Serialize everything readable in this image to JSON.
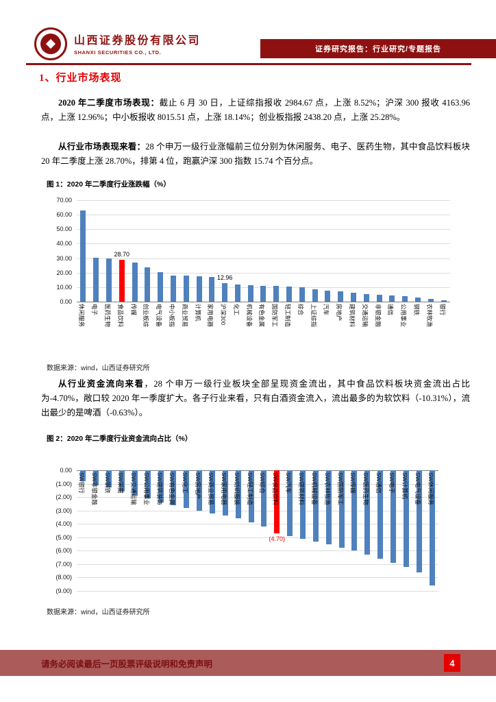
{
  "header": {
    "company_cn": "山西证券股份有限公司",
    "company_en": "SHANXI SECURITIES CO., LTD.",
    "banner": "证券研究报告：行业研究/专题报告"
  },
  "section_title": "1、行业市场表现",
  "paragraphs": {
    "p1_lead": "2020 年二季度市场表现：",
    "p1_rest": "截止 6 月 30 日，上证综指报收 2984.67 点，上涨 8.52%；沪深 300 报收 4163.96 点，上涨 12.96%；中小板报收 8015.51 点，上涨 18.14%；创业板指报 2438.20 点，上涨 25.28%。",
    "p2_lead": "从行业市场表现来看：",
    "p2_rest": "28 个申万一级行业涨幅前三位分别为休闲服务、电子、医药生物，其中食品饮料板块 20 年二季度上涨 28.70%，排第 4 位，跑赢沪深 300 指数 15.74 个百分点。",
    "p3_lead": "从行业资金流向来看",
    "p3_rest": "，28 个申万一级行业板块全部呈现资金流出，其中食品饮料板块资金流出占比为-4.70%，敞口较 2020 年一季度扩大。各子行业来看，只有白酒资金流入，流出最多的为软饮料（-10.31%），流出最少的是啤酒（-0.63%）。"
  },
  "figures": {
    "fig1_title": "图 1：2020 年二季度行业涨跌幅（%）",
    "fig1_source": "数据来源：wind，山西证券研究所",
    "fig2_title": "图 2：2020 年二季度行业资金流向占比（%）",
    "fig2_source": "数据来源：wind，山西证券研究所"
  },
  "footer": {
    "disclaimer": "请务必阅读最后一页股票评级说明和免责声明",
    "page_number": "4"
  },
  "colors": {
    "brand_red": "#8E1111",
    "accent_red": "#E60000",
    "bar_blue": "#4F81BD",
    "bar_red": "#FF0000",
    "footer_bg": "#AC5B5B",
    "footer_text": "#7B1013"
  },
  "chart_data": [
    {
      "type": "bar",
      "title": "2020 年二季度行业涨跌幅（%）",
      "ylim": [
        0,
        70
      ],
      "axis_max": 70,
      "yticks": [
        "70.00",
        "60.00",
        "50.00",
        "40.00",
        "30.00",
        "20.00",
        "10.00",
        "0.00"
      ],
      "categories": [
        "休闲服务",
        "电子",
        "医药生物",
        "食品饮料",
        "传媒",
        "创业板综",
        "电气设备",
        "中小板指",
        "商业贸易",
        "计算机",
        "家用电器",
        "沪深300",
        "化工",
        "机械设备",
        "有色金属",
        "国防军工",
        "轻工制造",
        "综合",
        "上证综指",
        "汽车",
        "房地产",
        "建筑材料",
        "交通运输",
        "非银金融",
        "通信",
        "公用事业",
        "钢铁",
        "农林牧渔",
        "银行"
      ],
      "values": [
        63.0,
        30.5,
        29.8,
        28.7,
        27.0,
        23.5,
        20.5,
        18.1,
        17.8,
        17.5,
        17.0,
        12.96,
        12.0,
        11.5,
        11.0,
        10.8,
        10.5,
        10.0,
        8.52,
        7.8,
        7.2,
        6.3,
        5.2,
        4.6,
        4.2,
        3.6,
        3.0,
        1.8,
        0.8
      ],
      "highlight_index": 3,
      "bar_color": "#4F81BD",
      "highlight_color": "#FF0000",
      "point_labels": {
        "3": "28.70",
        "11": "12.96"
      },
      "point_label_colors": {
        "3": "#000000",
        "11": "#000000"
      },
      "grid": true,
      "legend": "none"
    },
    {
      "type": "bar",
      "title": "2020 年二季度行业资金流向占比（%）",
      "ylim": [
        -9,
        0
      ],
      "axis_max": 9,
      "yticks": [
        "0.00",
        "(1.00)",
        "(2.00)",
        "(3.00)",
        "(4.00)",
        "(5.00)",
        "(6.00)",
        "(7.00)",
        "(8.00)",
        "(9.00)"
      ],
      "categories": [
        "SW银行",
        "SW非银金融",
        "SW钢铁",
        "SW采掘",
        "SW交通运输",
        "SW公用事业",
        "SW建筑装饰",
        "SW有色金属",
        "SW化工",
        "SW房地产",
        "SW商业贸易",
        "SW家用电器",
        "SW纺织服装",
        "SW轻工制造",
        "SW综合",
        "SW食品饮料",
        "SW汽车",
        "SW建筑材料",
        "SW机械设备",
        "SW农林牧渔",
        "SW国防军工",
        "SW传媒",
        "SW医药生物",
        "SW通信",
        "SW电子",
        "SW计算机",
        "SW电气设备",
        "SW休闲服务"
      ],
      "values": [
        -0.8,
        -1.1,
        -1.3,
        -1.6,
        -1.9,
        -2.1,
        -2.4,
        -2.6,
        -2.8,
        -3.0,
        -3.2,
        -3.4,
        -3.6,
        -3.9,
        -4.2,
        -4.7,
        -4.9,
        -5.1,
        -5.3,
        -5.5,
        -5.8,
        -6.0,
        -6.3,
        -6.6,
        -6.9,
        -7.2,
        -7.6,
        -8.6
      ],
      "highlight_index": 15,
      "bar_color": "#4F81BD",
      "highlight_color": "#FF0000",
      "point_labels": {
        "15": "(4.70)"
      },
      "point_label_colors": {
        "15": "#FF0000"
      },
      "grid": true,
      "legend": "none"
    }
  ]
}
